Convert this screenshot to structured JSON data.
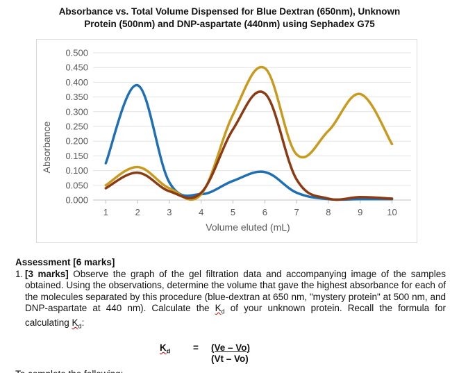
{
  "chart_data": {
    "type": "line",
    "title": "Absorbance vs. Total Volume Dispensed for Blue Dextran (650nm), Unknown Protein (500nm) and DNP-aspartate (440nm) using Sephadex G75",
    "title_lines": [
      "Absorbance vs. Total Volume Dispensed for Blue Dextran (650nm), Unknown",
      "Protein (500nm) and DNP-aspartate (440nm) using Sephadex G75"
    ],
    "xlabel": "Volume eluted (mL)",
    "ylabel": "Absorbance",
    "x": [
      1,
      2,
      3,
      4,
      5,
      6,
      7,
      8,
      9,
      10
    ],
    "x_ticks": [
      "1",
      "2",
      "3",
      "4",
      "5",
      "6",
      "7",
      "8",
      "9",
      "10"
    ],
    "y_ticks": [
      "0.000",
      "0.050",
      "0.100",
      "0.150",
      "0.200",
      "0.250",
      "0.300",
      "0.350",
      "0.400",
      "0.450",
      "0.500"
    ],
    "ylim": [
      0,
      0.5
    ],
    "xlim": [
      0.6,
      10.6
    ],
    "grid": true,
    "smooth": true,
    "series": [
      {
        "color": "#1f6fb5",
        "values": [
          0.125,
          0.39,
          0.06,
          0.02,
          0.065,
          0.095,
          0.025,
          0.003,
          0.003,
          0.003
        ]
      },
      {
        "color": "#c89a1e",
        "values": [
          0.05,
          0.112,
          0.04,
          0.02,
          0.29,
          0.448,
          0.155,
          0.235,
          0.36,
          0.19
        ]
      },
      {
        "color": "#8b3a12",
        "values": [
          0.04,
          0.093,
          0.03,
          0.025,
          0.24,
          0.362,
          0.07,
          0.005,
          0.01,
          0.005
        ]
      }
    ]
  },
  "assessment": {
    "heading": "Assessment [6 marks]",
    "q_number": "1.",
    "q_marks": "[3 marks]",
    "q_text_before_kd1": " Observe the graph of the gel filtration data and accompanying image of the samples obtained. Using the observations, determine the volume that gave the highest absorbance for each of the molecules separated by this procedure (blue-dextran at 650 nm, \"mystery protein\" at 500 nm, and DNP-aspartate at 440 nm). Calculate the ",
    "kd_symbol": "K",
    "kd_sub": "d",
    "q_text_mid": " of your unknown protein. Recall the formula for calculating ",
    "q_text_end": ":"
  },
  "formula": {
    "lhs": "K",
    "lhs_sub": "d",
    "equals": "=",
    "numerator": "(Ve – Vo)",
    "denominator": "(Vt – Vo)"
  },
  "cut_line_text": "To complete the following:"
}
